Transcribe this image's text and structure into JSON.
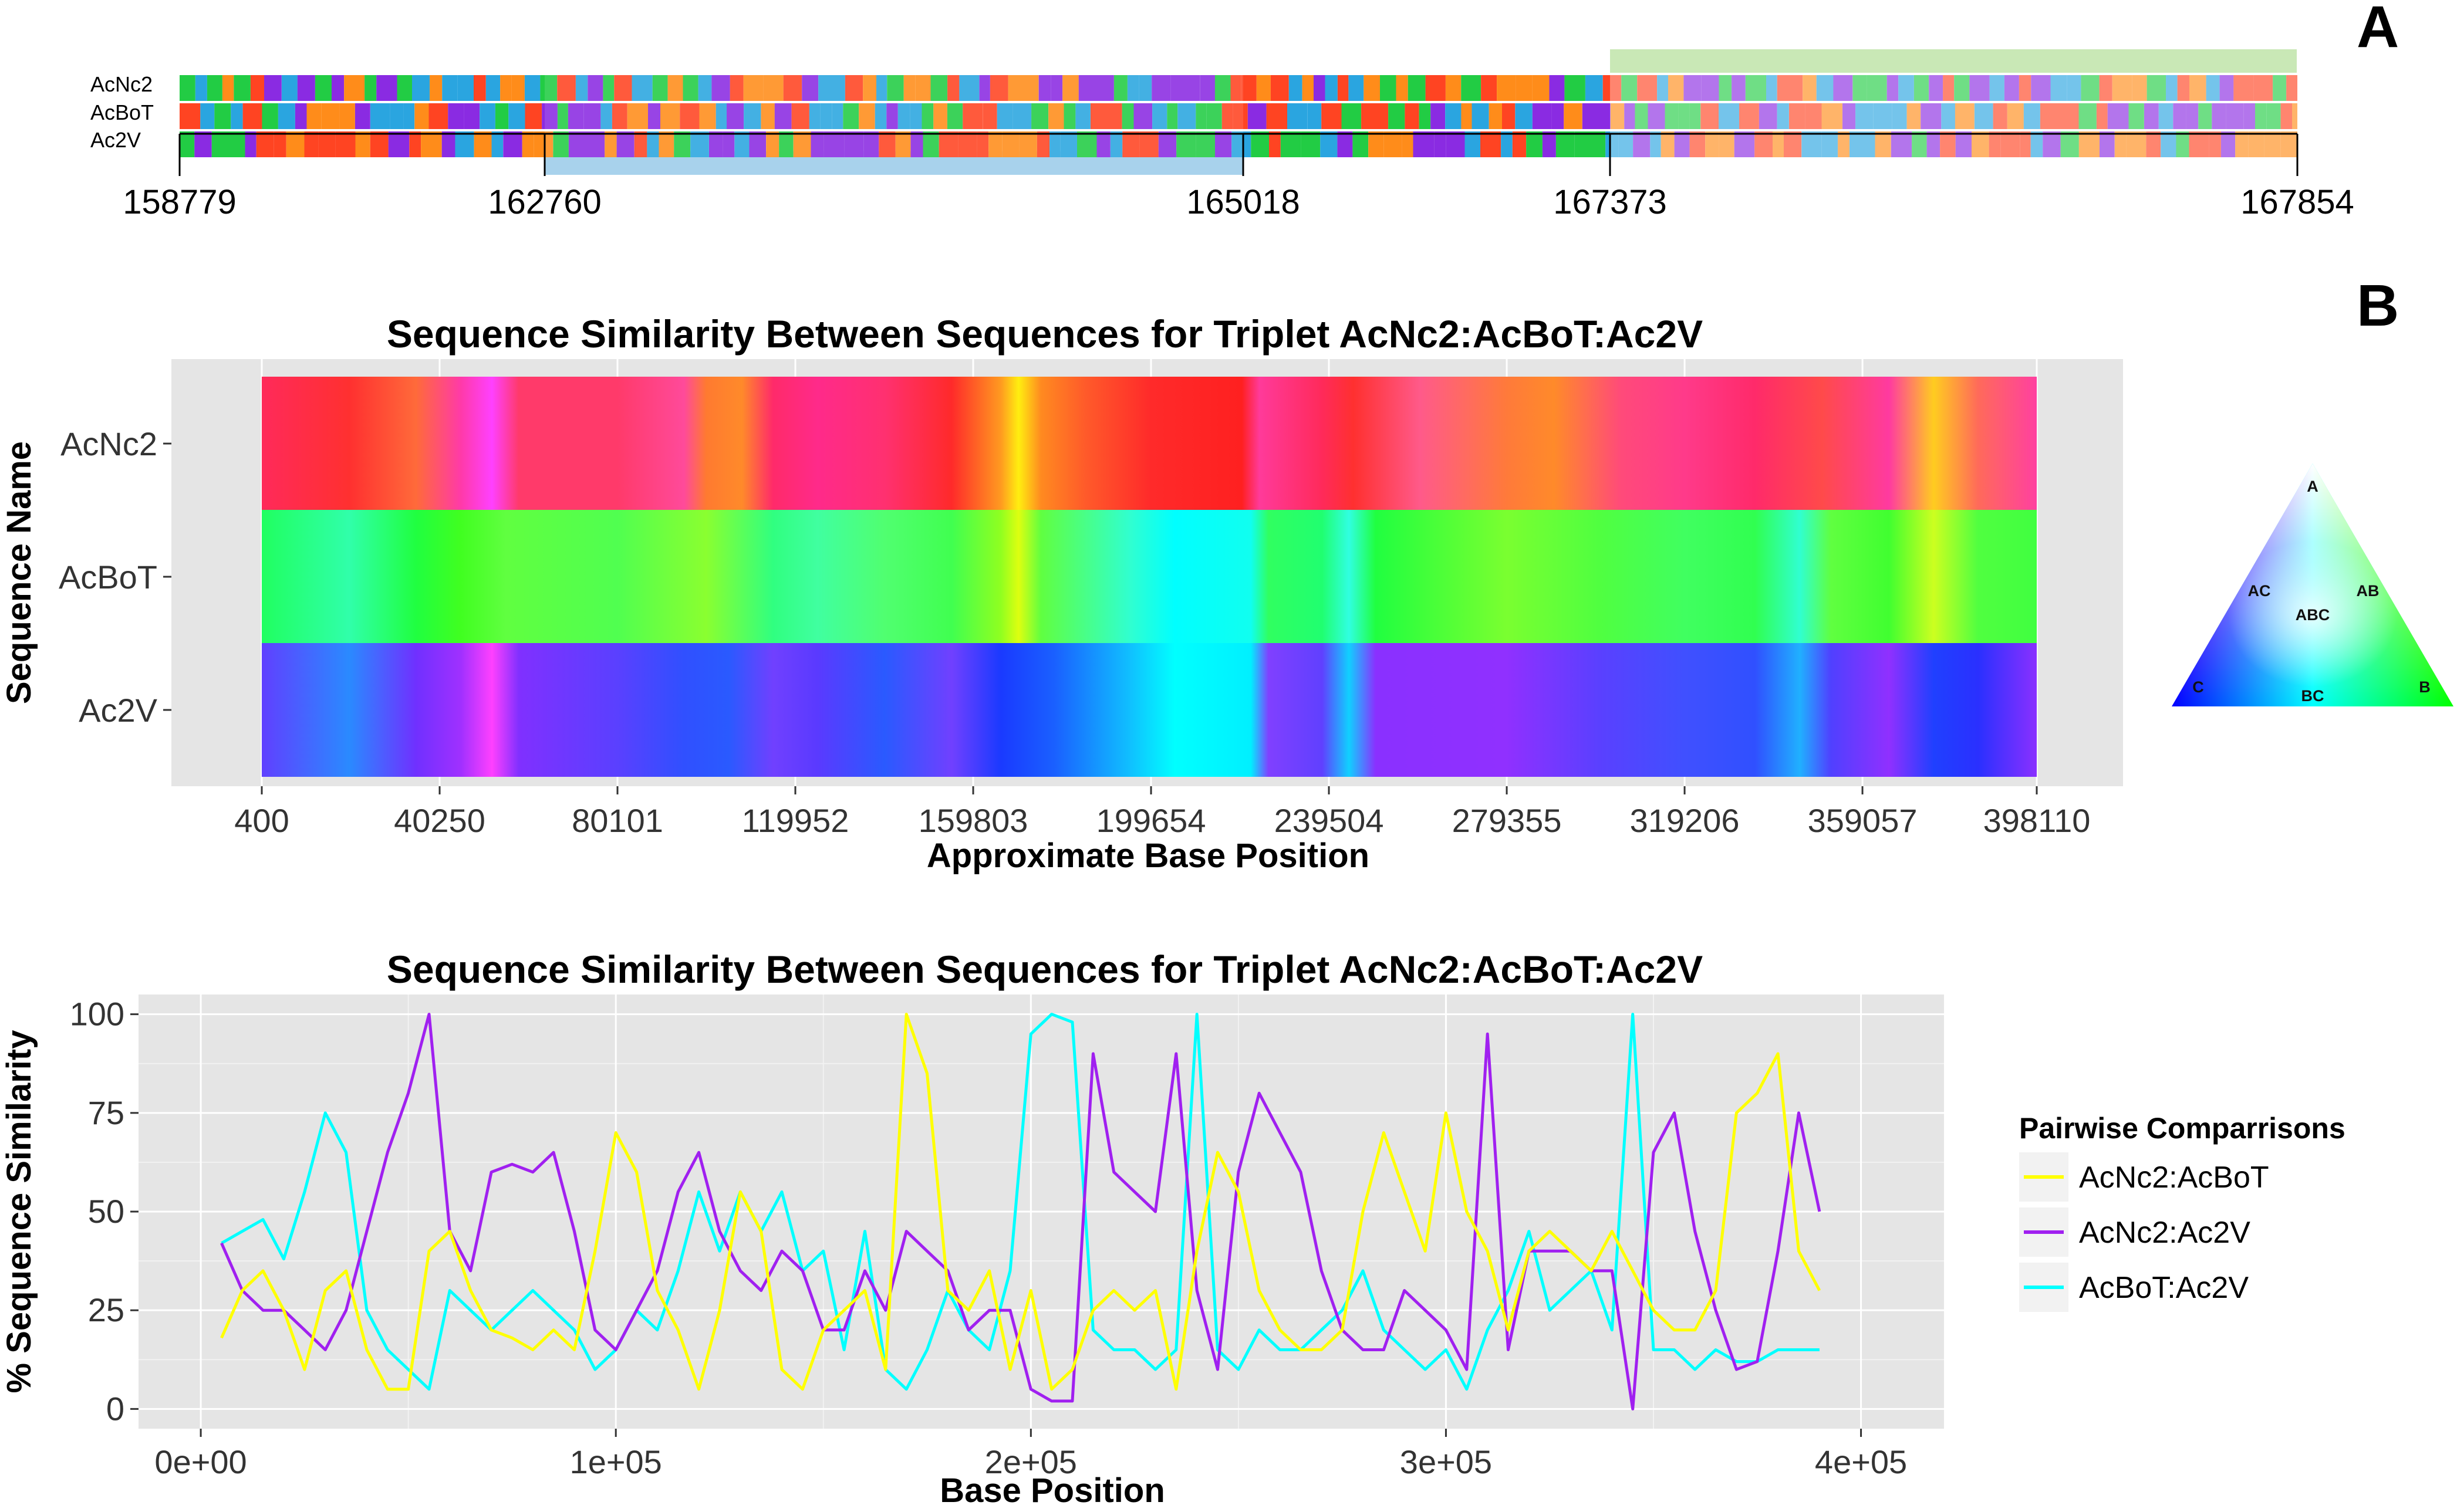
{
  "panel_a": {
    "letter": "A",
    "sequence_names": [
      "AcNc2",
      "AcBoT",
      "Ac2V"
    ],
    "positions": [
      "158779",
      "162760",
      "165018",
      "167373",
      "167854"
    ]
  },
  "panel_b": {
    "letter": "B"
  },
  "triangle_labels": {
    "a": "A",
    "ab": "AB",
    "ac": "AC",
    "abc": "ABC",
    "b": "B",
    "bc": "BC",
    "c": "C"
  },
  "colors": {
    "AcNc2:AcBoT": "#ffff00",
    "AcNc2:Ac2V": "#a020f0",
    "AcBoT:Ac2V": "#00ffff",
    "panel_bg": "#e5e5e5",
    "highlight_green": "#c9e8b6",
    "highlight_blue": "#a8d2ec"
  },
  "chart_data": [
    {
      "type": "heatmap",
      "title": "Sequence Similarity Between Sequences for Triplet AcNc2:AcBoT:Ac2V",
      "xlabel": "Approximate Base Position",
      "ylabel": "Sequence Name",
      "rows": [
        "AcNc2",
        "AcBoT",
        "Ac2V"
      ],
      "x_ticks": [
        "400",
        "40250",
        "80101",
        "119952",
        "159803",
        "199654",
        "239504",
        "279355",
        "319206",
        "359057",
        "398110"
      ],
      "x_range": [
        400,
        398110
      ],
      "color_stops": {
        "AcNc2": [
          [
            400,
            "#ff2a5a"
          ],
          [
            20000,
            "#ff3030"
          ],
          [
            35000,
            "#ff6a3a"
          ],
          [
            45000,
            "#ff3aa8"
          ],
          [
            52000,
            "#ff40ff"
          ],
          [
            58000,
            "#ff3a6a"
          ],
          [
            80101,
            "#ff3a6a"
          ],
          [
            95000,
            "#ff4a9a"
          ],
          [
            100000,
            "#ff7a30"
          ],
          [
            108000,
            "#ff8a2a"
          ],
          [
            115000,
            "#ff2a6a"
          ],
          [
            125000,
            "#ff2a8a"
          ],
          [
            140000,
            "#ff3070"
          ],
          [
            155000,
            "#ff2a2a"
          ],
          [
            166000,
            "#ff9a20"
          ],
          [
            170000,
            "#ffee10"
          ],
          [
            175000,
            "#ff8a20"
          ],
          [
            185000,
            "#ff5a2a"
          ],
          [
            199654,
            "#ff2a2a"
          ],
          [
            220000,
            "#ff2020"
          ],
          [
            224000,
            "#ff3a9a"
          ],
          [
            238000,
            "#ff2a5a"
          ],
          [
            245000,
            "#ff3030"
          ],
          [
            260000,
            "#ff5a8a"
          ],
          [
            279355,
            "#ff7a3a"
          ],
          [
            290000,
            "#ff8a2a"
          ],
          [
            305000,
            "#ff4a7a"
          ],
          [
            319206,
            "#ff3a8a"
          ],
          [
            335000,
            "#ff2a6a"
          ],
          [
            350000,
            "#ff4a4a"
          ],
          [
            365000,
            "#ff3aa0"
          ],
          [
            375000,
            "#ffcc20"
          ],
          [
            385000,
            "#ff6a5a"
          ],
          [
            398110,
            "#ff40a0"
          ]
        ],
        "AcBoT": [
          [
            400,
            "#20ff60"
          ],
          [
            20000,
            "#30ffaa"
          ],
          [
            35000,
            "#20ff40"
          ],
          [
            45000,
            "#40ff20"
          ],
          [
            55000,
            "#60ff40"
          ],
          [
            80101,
            "#50ff50"
          ],
          [
            100000,
            "#8aff30"
          ],
          [
            115000,
            "#30ff80"
          ],
          [
            125000,
            "#40ffa0"
          ],
          [
            140000,
            "#50ff70"
          ],
          [
            155000,
            "#40ff50"
          ],
          [
            166000,
            "#90ff20"
          ],
          [
            170000,
            "#ddff10"
          ],
          [
            175000,
            "#60ff40"
          ],
          [
            195000,
            "#30ffd0"
          ],
          [
            205000,
            "#00ffff"
          ],
          [
            222000,
            "#10fff0"
          ],
          [
            226000,
            "#30ff60"
          ],
          [
            238000,
            "#20ff70"
          ],
          [
            244000,
            "#30ffe0"
          ],
          [
            250000,
            "#20ff40"
          ],
          [
            279355,
            "#7aff30"
          ],
          [
            300000,
            "#50ff40"
          ],
          [
            319206,
            "#40ff60"
          ],
          [
            335000,
            "#30ff50"
          ],
          [
            345000,
            "#30ffd0"
          ],
          [
            352000,
            "#60ff40"
          ],
          [
            365000,
            "#40ff30"
          ],
          [
            375000,
            "#ccff20"
          ],
          [
            385000,
            "#50ff40"
          ],
          [
            398110,
            "#40ff40"
          ]
        ],
        "Ac2V": [
          [
            400,
            "#6040ff"
          ],
          [
            20000,
            "#2a8aff"
          ],
          [
            35000,
            "#7030ff"
          ],
          [
            45000,
            "#a030ff"
          ],
          [
            52000,
            "#ff40ff"
          ],
          [
            58000,
            "#8030ff"
          ],
          [
            80101,
            "#5a40ff"
          ],
          [
            95000,
            "#3050ff"
          ],
          [
            105000,
            "#2a5aff"
          ],
          [
            115000,
            "#7040ff"
          ],
          [
            125000,
            "#5a3aff"
          ],
          [
            140000,
            "#2a5aff"
          ],
          [
            155000,
            "#7040ff"
          ],
          [
            166000,
            "#1a3aff"
          ],
          [
            178000,
            "#1a60ff"
          ],
          [
            195000,
            "#10c0ff"
          ],
          [
            205000,
            "#00ffff"
          ],
          [
            222000,
            "#00f0ff"
          ],
          [
            226000,
            "#8040ff"
          ],
          [
            238000,
            "#6040ff"
          ],
          [
            244000,
            "#10d0ff"
          ],
          [
            250000,
            "#8a30ff"
          ],
          [
            279355,
            "#9030ff"
          ],
          [
            300000,
            "#5a40ff"
          ],
          [
            319206,
            "#4050ff"
          ],
          [
            335000,
            "#3050ff"
          ],
          [
            345000,
            "#20b0ff"
          ],
          [
            352000,
            "#5040ff"
          ],
          [
            365000,
            "#9030ff"
          ],
          [
            375000,
            "#2040ff"
          ],
          [
            385000,
            "#2a30ff"
          ],
          [
            398110,
            "#8a30ff"
          ]
        ]
      }
    },
    {
      "type": "line",
      "title": "Sequence Similarity Between Sequences for Triplet AcNc2:AcBoT:Ac2V",
      "xlabel": "Base Position",
      "ylabel": "% Sequence Similarity",
      "x_ticks": [
        "0e+00",
        "1e+05",
        "2e+05",
        "3e+05",
        "4e+05"
      ],
      "y_ticks": [
        "0",
        "25",
        "50",
        "75",
        "100"
      ],
      "xlim": [
        -15000,
        420000
      ],
      "ylim": [
        -5,
        105
      ],
      "legend_title": "Pairwise Comparrisons",
      "legend_position": "right",
      "series": [
        {
          "name": "AcNc2:AcBoT",
          "color": "#ffff00",
          "x": [
            5000,
            10000,
            15000,
            20000,
            25000,
            30000,
            35000,
            40000,
            45000,
            50000,
            55000,
            60000,
            65000,
            70000,
            75000,
            80000,
            85000,
            90000,
            95000,
            100000,
            105000,
            110000,
            115000,
            120000,
            125000,
            130000,
            135000,
            140000,
            145000,
            150000,
            155000,
            160000,
            165000,
            170000,
            175000,
            180000,
            185000,
            190000,
            195000,
            200000,
            205000,
            210000,
            215000,
            220000,
            225000,
            230000,
            235000,
            240000,
            245000,
            250000,
            255000,
            260000,
            265000,
            270000,
            275000,
            280000,
            285000,
            290000,
            295000,
            300000,
            305000,
            310000,
            315000,
            320000,
            325000,
            330000,
            335000,
            340000,
            345000,
            350000,
            355000,
            360000,
            365000,
            370000,
            375000,
            380000,
            385000,
            390000
          ],
          "y": [
            18,
            30,
            35,
            25,
            10,
            30,
            35,
            15,
            5,
            5,
            40,
            45,
            30,
            20,
            18,
            15,
            20,
            15,
            40,
            70,
            60,
            30,
            20,
            5,
            25,
            55,
            45,
            10,
            5,
            20,
            25,
            30,
            10,
            100,
            85,
            30,
            25,
            35,
            10,
            30,
            5,
            10,
            25,
            30,
            25,
            30,
            5,
            40,
            65,
            55,
            30,
            20,
            15,
            15,
            20,
            50,
            70,
            55,
            40,
            75,
            50,
            40,
            20,
            40,
            45,
            40,
            35,
            45,
            35,
            25,
            20,
            20,
            30,
            75,
            80,
            90,
            40,
            30
          ]
        },
        {
          "name": "AcNc2:Ac2V",
          "color": "#a020f0",
          "x": [
            5000,
            10000,
            15000,
            20000,
            25000,
            30000,
            35000,
            40000,
            45000,
            50000,
            55000,
            60000,
            65000,
            70000,
            75000,
            80000,
            85000,
            90000,
            95000,
            100000,
            105000,
            110000,
            115000,
            120000,
            125000,
            130000,
            135000,
            140000,
            145000,
            150000,
            155000,
            160000,
            165000,
            170000,
            175000,
            180000,
            185000,
            190000,
            195000,
            200000,
            205000,
            210000,
            215000,
            220000,
            225000,
            230000,
            235000,
            240000,
            245000,
            250000,
            255000,
            260000,
            265000,
            270000,
            275000,
            280000,
            285000,
            290000,
            295000,
            300000,
            305000,
            310000,
            315000,
            320000,
            325000,
            330000,
            335000,
            340000,
            345000,
            350000,
            355000,
            360000,
            365000,
            370000,
            375000,
            380000,
            385000,
            390000
          ],
          "y": [
            42,
            30,
            25,
            25,
            20,
            15,
            25,
            45,
            65,
            80,
            100,
            45,
            35,
            60,
            62,
            60,
            65,
            45,
            20,
            15,
            25,
            35,
            55,
            65,
            45,
            35,
            30,
            40,
            35,
            20,
            20,
            35,
            25,
            45,
            40,
            35,
            20,
            25,
            25,
            5,
            2,
            2,
            90,
            60,
            55,
            50,
            90,
            30,
            10,
            60,
            80,
            70,
            60,
            35,
            20,
            15,
            15,
            30,
            25,
            20,
            10,
            95,
            15,
            40,
            40,
            40,
            35,
            35,
            0,
            65,
            75,
            45,
            25,
            10,
            12,
            40,
            75,
            50
          ]
        },
        {
          "name": "AcBoT:Ac2V",
          "color": "#00ffff",
          "x": [
            5000,
            10000,
            15000,
            20000,
            25000,
            30000,
            35000,
            40000,
            45000,
            50000,
            55000,
            60000,
            65000,
            70000,
            75000,
            80000,
            85000,
            90000,
            95000,
            100000,
            105000,
            110000,
            115000,
            120000,
            125000,
            130000,
            135000,
            140000,
            145000,
            150000,
            155000,
            160000,
            165000,
            170000,
            175000,
            180000,
            185000,
            190000,
            195000,
            200000,
            205000,
            210000,
            215000,
            220000,
            225000,
            230000,
            235000,
            240000,
            245000,
            250000,
            255000,
            260000,
            265000,
            270000,
            275000,
            280000,
            285000,
            290000,
            295000,
            300000,
            305000,
            310000,
            315000,
            320000,
            325000,
            330000,
            335000,
            340000,
            345000,
            350000,
            355000,
            360000,
            365000,
            370000,
            375000,
            380000,
            385000,
            390000
          ],
          "y": [
            42,
            45,
            48,
            38,
            55,
            75,
            65,
            25,
            15,
            10,
            5,
            30,
            25,
            20,
            25,
            30,
            25,
            20,
            10,
            15,
            25,
            20,
            35,
            55,
            40,
            55,
            45,
            55,
            35,
            40,
            15,
            45,
            10,
            5,
            15,
            30,
            20,
            15,
            35,
            95,
            100,
            98,
            20,
            15,
            15,
            10,
            15,
            100,
            15,
            10,
            20,
            15,
            15,
            20,
            25,
            35,
            20,
            15,
            10,
            15,
            5,
            20,
            30,
            45,
            25,
            30,
            35,
            20,
            100,
            15,
            15,
            10,
            15,
            12,
            12,
            15,
            15,
            15
          ]
        }
      ]
    }
  ]
}
